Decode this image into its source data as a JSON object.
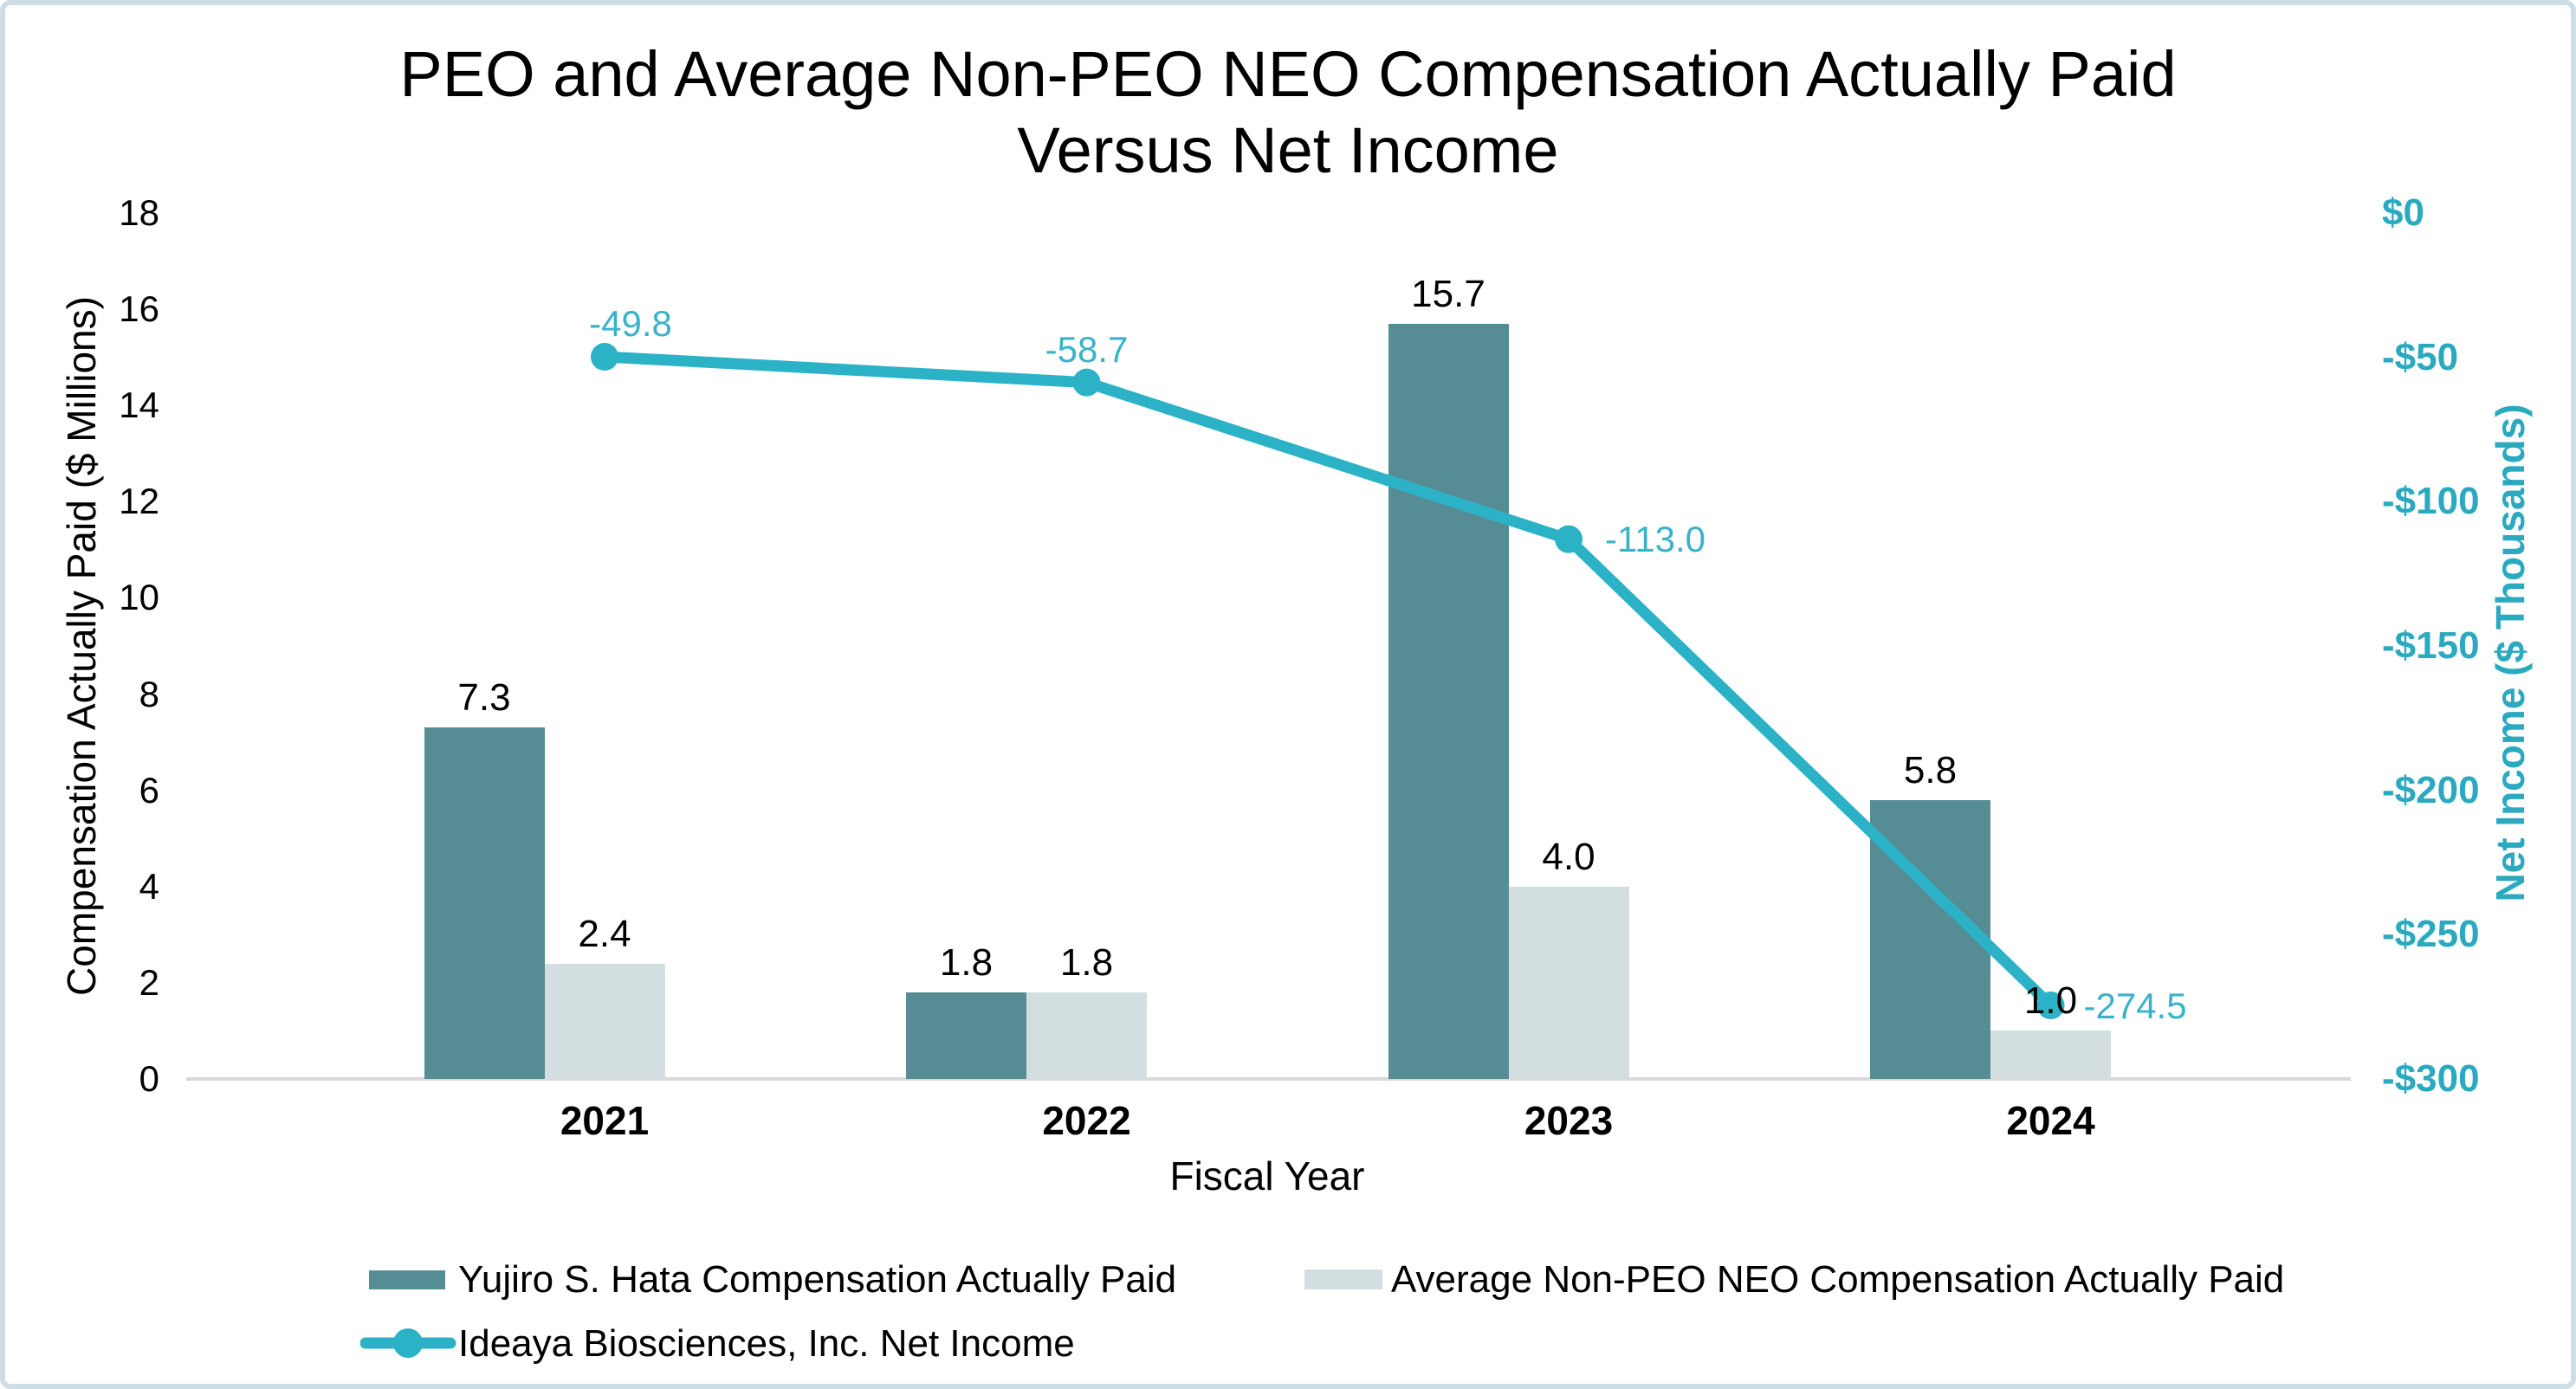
{
  "frame": {
    "border_color": "#cedee5",
    "background_color": "#ffffff"
  },
  "chart_data": {
    "type": "combo_bar_line",
    "title_line1": "PEO and Average Non-PEO NEO Compensation Actually Paid",
    "title_line2": "Versus Net Income",
    "categories": [
      "2021",
      "2022",
      "2023",
      "2024"
    ],
    "bar_series": [
      {
        "name": "Yujiro S. Hata Compensation Actually Paid",
        "color": "#568D95",
        "values": [
          7.3,
          1.8,
          15.7,
          5.8
        ],
        "labels": [
          "7.3",
          "1.8",
          "15.7",
          "5.8"
        ]
      },
      {
        "name": "Average Non-PEO NEO Compensation Actually Paid",
        "color": "#D3DEE1",
        "values": [
          2.4,
          1.8,
          4.0,
          1.0
        ],
        "labels": [
          "2.4",
          "1.8",
          "4.0",
          "1.0"
        ]
      }
    ],
    "line_series": {
      "name": "Ideaya Biosciences, Inc. Net Income",
      "color": "#2BB2C7",
      "label_color": "#3AB3C8",
      "values": [
        -49.8,
        -58.7,
        -113.0,
        -274.5
      ],
      "labels": [
        "-49.8",
        "-58.7",
        "-113.0",
        "-274.5"
      ]
    },
    "left_axis": {
      "title": "Compensation Actually Paid ($ Millions)",
      "min": 0,
      "max": 18,
      "step": 2,
      "tick_labels": [
        "0",
        "2",
        "4",
        "6",
        "8",
        "10",
        "12",
        "14",
        "16",
        "18"
      ],
      "tick_values": [
        0,
        2,
        4,
        6,
        8,
        10,
        12,
        14,
        16,
        18
      ]
    },
    "right_axis": {
      "title": "Net Income ($ Thousands)",
      "min": -300,
      "max": 0,
      "step": 50,
      "color": "#2BA9BF",
      "tick_labels": [
        "$0",
        "-$50",
        "-$100",
        "-$150",
        "-$200",
        "-$250",
        "-$300"
      ],
      "tick_values": [
        0,
        -50,
        -100,
        -150,
        -200,
        -250,
        -300
      ]
    },
    "x_axis": {
      "title": "Fiscal Year"
    },
    "grid": "off",
    "legend_position": "bottom",
    "baseline_color": "#D9D9D9"
  }
}
